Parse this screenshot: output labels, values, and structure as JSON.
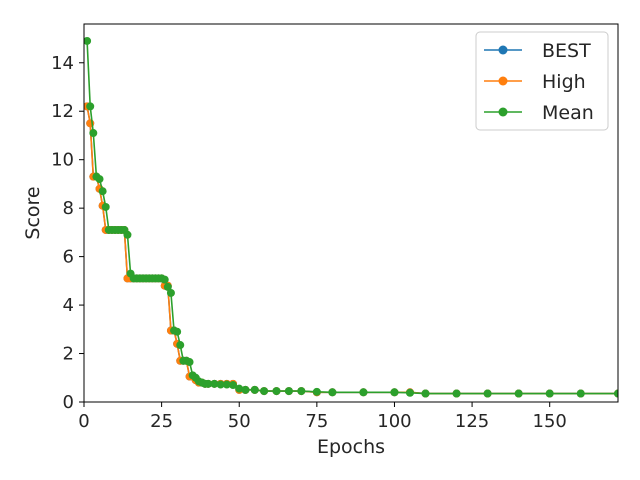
{
  "chart_data": {
    "type": "line",
    "title": "",
    "xlabel": "Epochs",
    "ylabel": "Score",
    "xlim": [
      0,
      172
    ],
    "ylim": [
      0,
      15.6
    ],
    "xticks": [
      0,
      25,
      50,
      75,
      100,
      125,
      150
    ],
    "yticks": [
      0,
      2,
      4,
      6,
      8,
      10,
      12,
      14
    ],
    "grid": false,
    "legend_position": "top-right",
    "series": [
      {
        "name": "BEST",
        "color": "#1f77b4",
        "points": [
          [
            1,
            12.2
          ],
          [
            2,
            11.5
          ],
          [
            3,
            9.3
          ],
          [
            4,
            9.3
          ],
          [
            5,
            8.8
          ],
          [
            6,
            8.1
          ],
          [
            7,
            7.1
          ],
          [
            8,
            7.1
          ],
          [
            9,
            7.1
          ],
          [
            10,
            7.1
          ],
          [
            11,
            7.1
          ],
          [
            12,
            7.1
          ],
          [
            13,
            7.1
          ],
          [
            14,
            5.1
          ],
          [
            15,
            5.1
          ],
          [
            16,
            5.1
          ],
          [
            17,
            5.1
          ],
          [
            18,
            5.1
          ],
          [
            19,
            5.1
          ],
          [
            20,
            5.1
          ],
          [
            21,
            5.1
          ],
          [
            22,
            5.1
          ],
          [
            23,
            5.1
          ],
          [
            24,
            5.1
          ],
          [
            25,
            5.1
          ],
          [
            26,
            4.8
          ],
          [
            27,
            4.8
          ],
          [
            28,
            2.95
          ],
          [
            29,
            2.95
          ],
          [
            30,
            2.4
          ],
          [
            31,
            1.7
          ],
          [
            32,
            1.7
          ],
          [
            33,
            1.7
          ],
          [
            34,
            1.05
          ],
          [
            35,
            1.05
          ],
          [
            36,
            0.9
          ],
          [
            37,
            0.8
          ],
          [
            38,
            0.8
          ],
          [
            39,
            0.75
          ],
          [
            40,
            0.75
          ],
          [
            42,
            0.75
          ],
          [
            44,
            0.75
          ],
          [
            46,
            0.75
          ],
          [
            48,
            0.75
          ],
          [
            50,
            0.5
          ],
          [
            52,
            0.5
          ],
          [
            55,
            0.5
          ],
          [
            58,
            0.45
          ],
          [
            62,
            0.45
          ],
          [
            66,
            0.45
          ],
          [
            70,
            0.45
          ],
          [
            75,
            0.4
          ],
          [
            80,
            0.4
          ],
          [
            90,
            0.4
          ],
          [
            100,
            0.4
          ],
          [
            105,
            0.4
          ],
          [
            110,
            0.35
          ],
          [
            120,
            0.35
          ],
          [
            130,
            0.35
          ],
          [
            140,
            0.35
          ],
          [
            150,
            0.35
          ],
          [
            160,
            0.35
          ],
          [
            172,
            0.35
          ]
        ]
      },
      {
        "name": "High",
        "color": "#ff7f0e",
        "points": [
          [
            1,
            12.2
          ],
          [
            2,
            11.5
          ],
          [
            3,
            9.3
          ],
          [
            4,
            9.3
          ],
          [
            5,
            8.8
          ],
          [
            6,
            8.1
          ],
          [
            7,
            7.1
          ],
          [
            8,
            7.1
          ],
          [
            9,
            7.1
          ],
          [
            10,
            7.1
          ],
          [
            11,
            7.1
          ],
          [
            12,
            7.1
          ],
          [
            13,
            7.1
          ],
          [
            14,
            5.1
          ],
          [
            15,
            5.1
          ],
          [
            16,
            5.1
          ],
          [
            17,
            5.1
          ],
          [
            18,
            5.1
          ],
          [
            19,
            5.1
          ],
          [
            20,
            5.1
          ],
          [
            21,
            5.1
          ],
          [
            22,
            5.1
          ],
          [
            23,
            5.1
          ],
          [
            24,
            5.1
          ],
          [
            25,
            5.1
          ],
          [
            26,
            4.8
          ],
          [
            27,
            4.8
          ],
          [
            28,
            2.95
          ],
          [
            29,
            2.95
          ],
          [
            30,
            2.4
          ],
          [
            31,
            1.7
          ],
          [
            32,
            1.7
          ],
          [
            33,
            1.7
          ],
          [
            34,
            1.05
          ],
          [
            35,
            1.05
          ],
          [
            36,
            0.9
          ],
          [
            37,
            0.8
          ],
          [
            38,
            0.8
          ],
          [
            39,
            0.75
          ],
          [
            40,
            0.75
          ],
          [
            42,
            0.75
          ],
          [
            44,
            0.75
          ],
          [
            46,
            0.75
          ],
          [
            48,
            0.75
          ],
          [
            50,
            0.5
          ],
          [
            52,
            0.5
          ],
          [
            55,
            0.5
          ],
          [
            58,
            0.45
          ],
          [
            62,
            0.45
          ],
          [
            66,
            0.45
          ],
          [
            70,
            0.45
          ],
          [
            75,
            0.4
          ],
          [
            80,
            0.4
          ],
          [
            90,
            0.4
          ],
          [
            100,
            0.4
          ],
          [
            105,
            0.4
          ],
          [
            110,
            0.35
          ],
          [
            120,
            0.35
          ],
          [
            130,
            0.35
          ],
          [
            140,
            0.35
          ],
          [
            150,
            0.35
          ],
          [
            160,
            0.35
          ],
          [
            172,
            0.35
          ]
        ]
      },
      {
        "name": "Mean",
        "color": "#2ca02c",
        "points": [
          [
            1,
            14.9
          ],
          [
            2,
            12.2
          ],
          [
            3,
            11.1
          ],
          [
            4,
            9.3
          ],
          [
            5,
            9.2
          ],
          [
            6,
            8.7
          ],
          [
            7,
            8.05
          ],
          [
            8,
            7.1
          ],
          [
            9,
            7.1
          ],
          [
            10,
            7.1
          ],
          [
            11,
            7.1
          ],
          [
            12,
            7.1
          ],
          [
            13,
            7.1
          ],
          [
            14,
            6.9
          ],
          [
            15,
            5.3
          ],
          [
            16,
            5.1
          ],
          [
            17,
            5.1
          ],
          [
            18,
            5.1
          ],
          [
            19,
            5.1
          ],
          [
            20,
            5.1
          ],
          [
            21,
            5.1
          ],
          [
            22,
            5.1
          ],
          [
            23,
            5.1
          ],
          [
            24,
            5.1
          ],
          [
            25,
            5.1
          ],
          [
            26,
            5.05
          ],
          [
            27,
            4.75
          ],
          [
            28,
            4.5
          ],
          [
            29,
            2.95
          ],
          [
            30,
            2.9
          ],
          [
            31,
            2.35
          ],
          [
            32,
            1.7
          ],
          [
            33,
            1.7
          ],
          [
            34,
            1.65
          ],
          [
            35,
            1.1
          ],
          [
            36,
            1.0
          ],
          [
            37,
            0.85
          ],
          [
            38,
            0.8
          ],
          [
            39,
            0.75
          ],
          [
            40,
            0.75
          ],
          [
            42,
            0.75
          ],
          [
            44,
            0.72
          ],
          [
            46,
            0.72
          ],
          [
            48,
            0.7
          ],
          [
            50,
            0.55
          ],
          [
            52,
            0.5
          ],
          [
            55,
            0.5
          ],
          [
            58,
            0.45
          ],
          [
            62,
            0.45
          ],
          [
            66,
            0.45
          ],
          [
            70,
            0.45
          ],
          [
            75,
            0.42
          ],
          [
            80,
            0.4
          ],
          [
            90,
            0.4
          ],
          [
            100,
            0.4
          ],
          [
            105,
            0.38
          ],
          [
            110,
            0.35
          ],
          [
            120,
            0.35
          ],
          [
            130,
            0.35
          ],
          [
            140,
            0.35
          ],
          [
            150,
            0.35
          ],
          [
            160,
            0.35
          ],
          [
            172,
            0.35
          ]
        ]
      }
    ]
  }
}
